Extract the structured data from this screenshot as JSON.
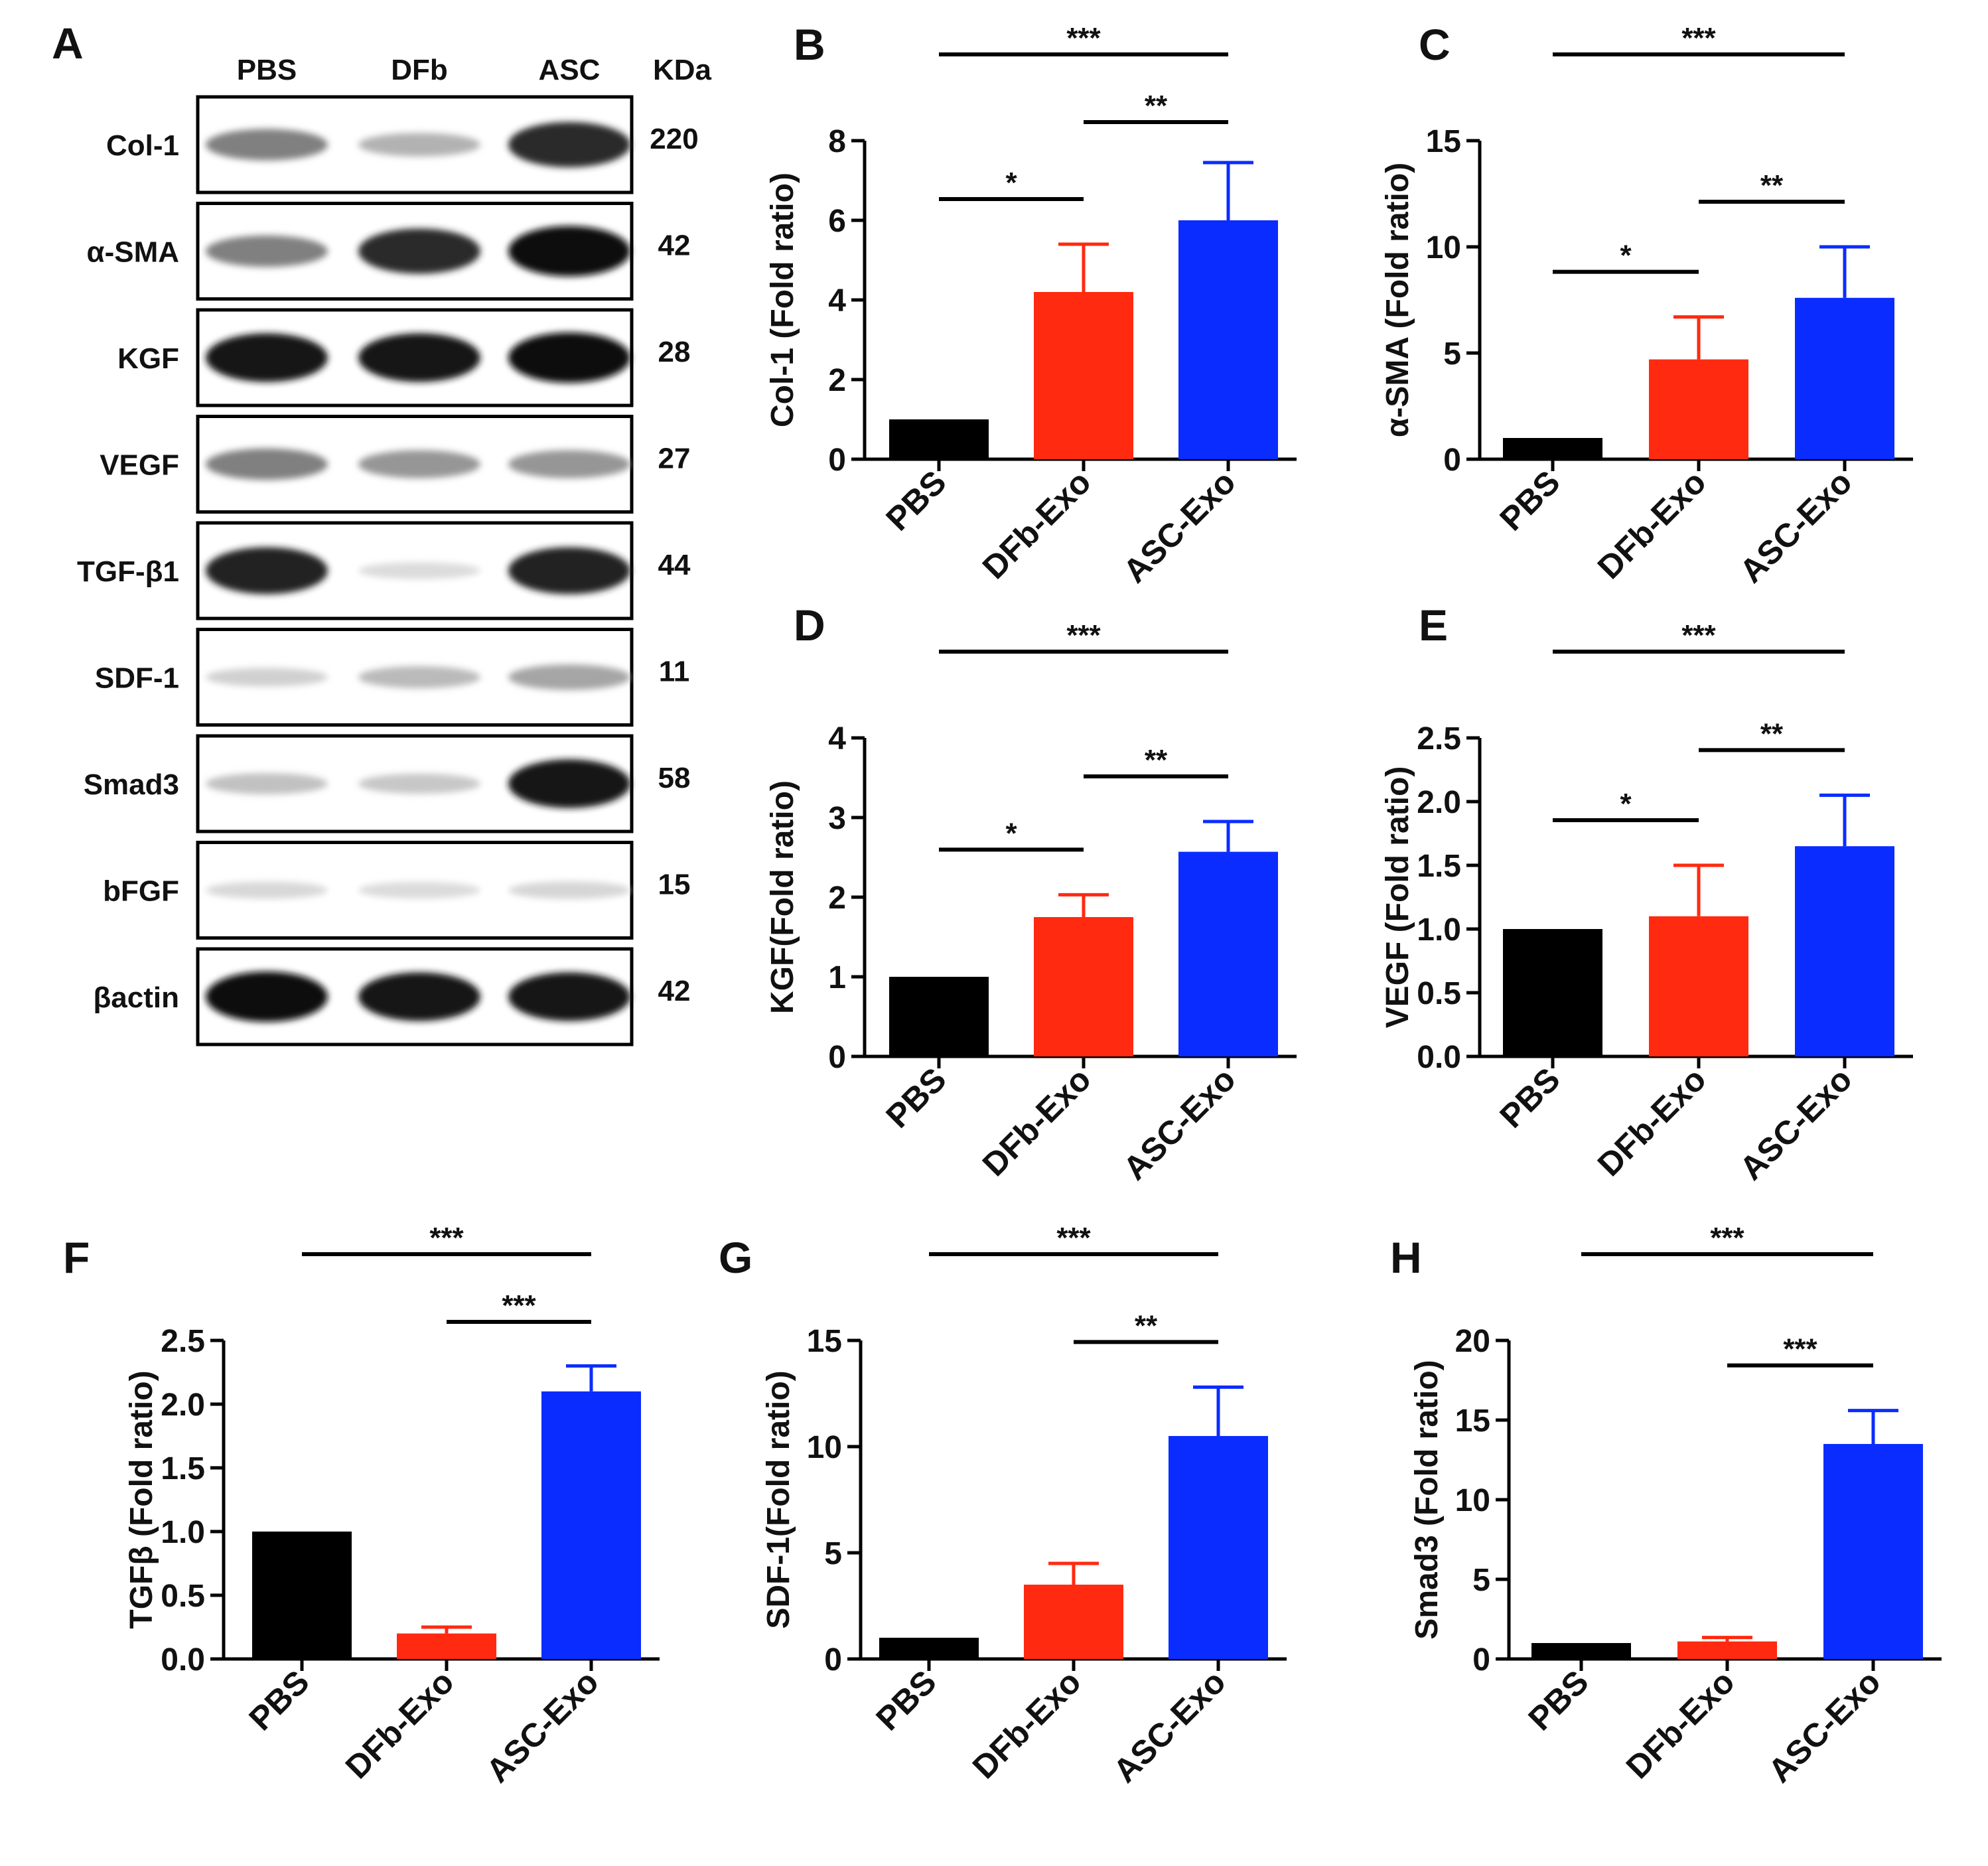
{
  "colors": {
    "pbs": "#000000",
    "dfb": "#ff2a10",
    "asc": "#0a2cff",
    "axis": "#000000"
  },
  "panel_a": {
    "letter": "A",
    "lanes": [
      "PBS",
      "DFb",
      "ASC"
    ],
    "kda_header": "KDa",
    "rows": [
      {
        "protein": "Col-1",
        "kda": "220",
        "band": [
          0.45,
          0.22,
          0.85
        ]
      },
      {
        "protein": "α-SMA",
        "kda": "42",
        "band": [
          0.45,
          0.85,
          1.0
        ]
      },
      {
        "protein": "KGF",
        "kda": "28",
        "band": [
          0.95,
          0.95,
          1.0
        ]
      },
      {
        "protein": "VEGF",
        "kda": "27",
        "band": [
          0.45,
          0.35,
          0.35
        ]
      },
      {
        "protein": "TGF-β1",
        "kda": "44",
        "band": [
          0.9,
          0.03,
          0.9
        ]
      },
      {
        "protein": "SDF-1",
        "kda": "11",
        "band": [
          0.08,
          0.18,
          0.28
        ]
      },
      {
        "protein": "Smad3",
        "kda": "58",
        "band": [
          0.15,
          0.12,
          0.95
        ]
      },
      {
        "protein": "bFGF",
        "kda": "15",
        "band": [
          0.04,
          0.03,
          0.05
        ]
      },
      {
        "protein": "βactin",
        "kda": "42",
        "band": [
          1.0,
          0.95,
          0.95
        ]
      }
    ]
  },
  "chart_data": [
    {
      "panel": "B",
      "type": "bar",
      "categories": [
        "PBS",
        "DFb-Exo",
        "ASC-Exo"
      ],
      "values": [
        1.0,
        4.2,
        6.0
      ],
      "errors": [
        0,
        1.2,
        1.45
      ],
      "ylabel": "Col-1 (Fold ratio)",
      "ylim": [
        0,
        8
      ],
      "yticks": [
        "0",
        "2",
        "4",
        "6",
        "8"
      ],
      "significance": [
        {
          "from": 0,
          "to": 1,
          "label": "*"
        },
        {
          "from": 1,
          "to": 2,
          "label": "**"
        },
        {
          "from": 0,
          "to": 2,
          "label": "***"
        }
      ]
    },
    {
      "panel": "C",
      "type": "bar",
      "categories": [
        "PBS",
        "DFb-Exo",
        "ASC-Exo"
      ],
      "values": [
        1.0,
        4.7,
        7.6
      ],
      "errors": [
        0,
        2.0,
        2.4
      ],
      "ylabel": "α-SMA (Fold ratio)",
      "ylim": [
        0,
        15
      ],
      "yticks": [
        "0",
        "5",
        "10",
        "15"
      ],
      "significance": [
        {
          "from": 0,
          "to": 1,
          "label": "*"
        },
        {
          "from": 1,
          "to": 2,
          "label": "**"
        },
        {
          "from": 0,
          "to": 2,
          "label": "***"
        }
      ]
    },
    {
      "panel": "D",
      "type": "bar",
      "categories": [
        "PBS",
        "DFb-Exo",
        "ASC-Exo"
      ],
      "values": [
        1.0,
        1.75,
        2.57
      ],
      "errors": [
        0,
        0.28,
        0.38
      ],
      "ylabel": "KGF(Fold ratio)",
      "ylim": [
        0,
        4
      ],
      "yticks": [
        "0",
        "1",
        "2",
        "3",
        "4"
      ],
      "significance": [
        {
          "from": 0,
          "to": 1,
          "label": "*"
        },
        {
          "from": 1,
          "to": 2,
          "label": "**"
        },
        {
          "from": 0,
          "to": 2,
          "label": "***"
        }
      ]
    },
    {
      "panel": "E",
      "type": "bar",
      "categories": [
        "PBS",
        "DFb-Exo",
        "ASC-Exo"
      ],
      "values": [
        1.0,
        1.1,
        1.65
      ],
      "errors": [
        0,
        0.4,
        0.4
      ],
      "ylabel": "VEGF (Fold ratio)",
      "ylim": [
        0,
        2.5
      ],
      "yticks": [
        "0.0",
        "0.5",
        "1.0",
        "1.5",
        "2.0",
        "2.5"
      ],
      "significance": [
        {
          "from": 0,
          "to": 1,
          "label": "*"
        },
        {
          "from": 1,
          "to": 2,
          "label": "**"
        },
        {
          "from": 0,
          "to": 2,
          "label": "***"
        }
      ]
    },
    {
      "panel": "F",
      "type": "bar",
      "categories": [
        "PBS",
        "DFb-Exo",
        "ASC-Exo"
      ],
      "values": [
        1.0,
        0.2,
        2.1
      ],
      "errors": [
        0,
        0.05,
        0.2
      ],
      "ylabel": "TGFβ (Fold ratio)",
      "ylim": [
        0,
        2.5
      ],
      "yticks": [
        "0.0",
        "0.5",
        "1.0",
        "1.5",
        "2.0",
        "2.5"
      ],
      "significance": [
        {
          "from": 1,
          "to": 2,
          "label": "***"
        },
        {
          "from": 0,
          "to": 2,
          "label": "***"
        }
      ]
    },
    {
      "panel": "G",
      "type": "bar",
      "categories": [
        "PBS",
        "DFb-Exo",
        "ASC-Exo"
      ],
      "values": [
        1.0,
        3.5,
        10.5
      ],
      "errors": [
        0,
        1.0,
        2.3
      ],
      "ylabel": "SDF-1(Fold ratio)",
      "ylim": [
        0,
        15
      ],
      "yticks": [
        "0",
        "5",
        "10",
        "15"
      ],
      "significance": [
        {
          "from": 1,
          "to": 2,
          "label": "**"
        },
        {
          "from": 0,
          "to": 2,
          "label": "***"
        }
      ]
    },
    {
      "panel": "H",
      "type": "bar",
      "categories": [
        "PBS",
        "DFb-Exo",
        "ASC-Exo"
      ],
      "values": [
        1.0,
        1.1,
        13.5
      ],
      "errors": [
        0,
        0.25,
        2.1
      ],
      "ylabel": "Smad3 (Fold ratio)",
      "ylim": [
        0,
        20
      ],
      "yticks": [
        "0",
        "5",
        "10",
        "15",
        "20"
      ],
      "significance": [
        {
          "from": 1,
          "to": 2,
          "label": "***"
        },
        {
          "from": 0,
          "to": 2,
          "label": "***"
        }
      ]
    }
  ]
}
